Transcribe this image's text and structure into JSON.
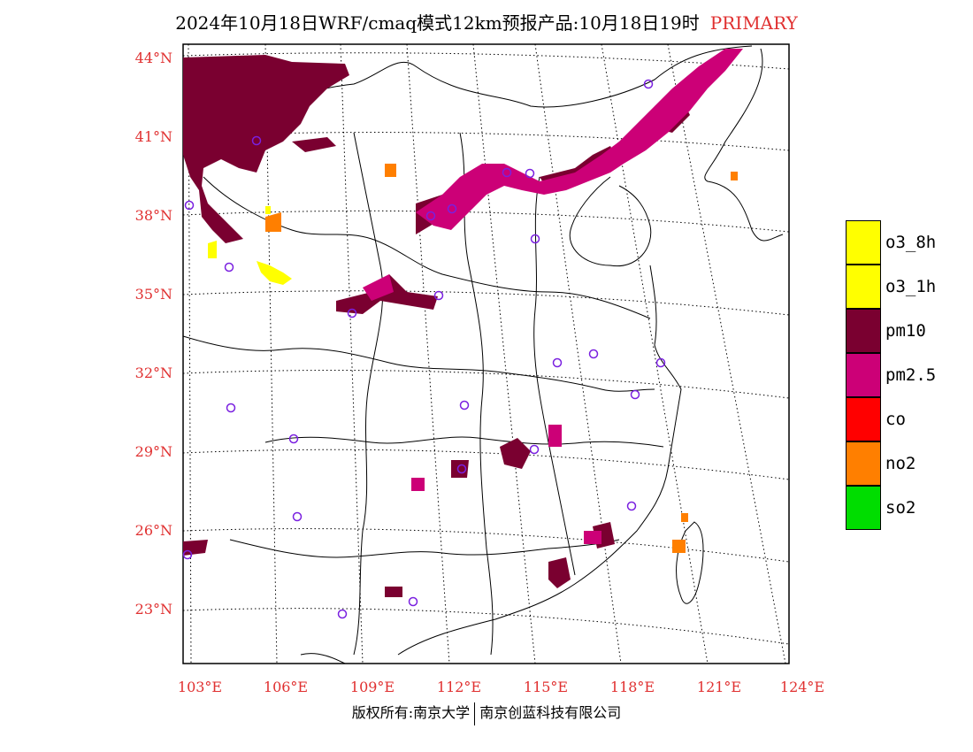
{
  "title": {
    "main": "2024年10月18日WRF/cmaq模式12km预报产品:10月18日19时",
    "tag": "PRIMARY"
  },
  "axes": {
    "lat_labels": [
      "44°N",
      "41°N",
      "38°N",
      "35°N",
      "32°N",
      "29°N",
      "26°N",
      "23°N"
    ],
    "lon_labels": [
      "103°E",
      "106°E",
      "109°E",
      "112°E",
      "115°E",
      "118°E",
      "121°E",
      "124°E"
    ],
    "label_color": "#e03030"
  },
  "legend": [
    {
      "label": "o3_8h",
      "color": "#ffff00"
    },
    {
      "label": "o3_1h",
      "color": "#ffff00"
    },
    {
      "label": "pm10",
      "color": "#7a0030"
    },
    {
      "label": "pm2.5",
      "color": "#cc0077"
    },
    {
      "label": "co",
      "color": "#ff0000"
    },
    {
      "label": "no2",
      "color": "#ff7f00"
    },
    {
      "label": "so2",
      "color": "#00dd00"
    }
  ],
  "footer": {
    "left": "版权所有:南京大学",
    "right": "南京创蓝科技有限公司"
  }
}
